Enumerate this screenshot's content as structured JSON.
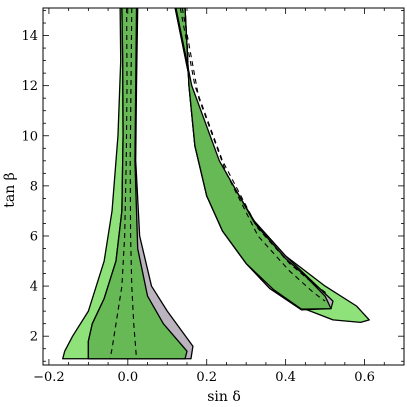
{
  "chart_data": {
    "type": "area",
    "title": "",
    "xlabel": "sin δ",
    "ylabel": "tan β",
    "xlim": [
      -0.215,
      0.7
    ],
    "ylim": [
      0.85,
      15.1
    ],
    "x_ticks": [
      -0.2,
      0.0,
      0.2,
      0.4,
      0.6
    ],
    "x_tick_labels": [
      "−0.2",
      "0.0",
      "0.2",
      "0.4",
      "0.6"
    ],
    "y_ticks": [
      2,
      4,
      6,
      8,
      10,
      12,
      14
    ],
    "y_tick_labels": [
      "2",
      "4",
      "6",
      "8",
      "10",
      "12",
      "14"
    ],
    "grid": false,
    "legend": "none",
    "colors": {
      "light_green": "#8fe27a",
      "gray": "#bbb4bf",
      "dark_green": "#66b954",
      "outline": "#000000"
    },
    "regions": [
      {
        "fill": "light_green",
        "points": [
          [
            -0.0195,
            15.1
          ],
          [
            -0.018,
            13
          ],
          [
            -0.025,
            10
          ],
          [
            -0.04,
            7
          ],
          [
            -0.06,
            5
          ],
          [
            -0.1,
            3
          ],
          [
            -0.14,
            2
          ],
          [
            -0.16,
            1.4
          ],
          [
            -0.165,
            1.1
          ],
          [
            0.145,
            1.1
          ],
          [
            0.15,
            1.3
          ],
          [
            0.08,
            2
          ],
          [
            0.04,
            3
          ],
          [
            0.02,
            5
          ],
          [
            0.015,
            8
          ],
          [
            0.017,
            12
          ],
          [
            0.022,
            15.1
          ]
        ]
      },
      {
        "fill": "gray",
        "points": [
          [
            -0.015,
            15.1
          ],
          [
            -0.013,
            13
          ],
          [
            -0.012,
            10
          ],
          [
            -0.015,
            7
          ],
          [
            -0.03,
            5
          ],
          [
            -0.06,
            3.5
          ],
          [
            -0.09,
            2.5
          ],
          [
            -0.1,
            1.8
          ],
          [
            -0.1,
            1.1
          ],
          [
            0.16,
            1.1
          ],
          [
            0.165,
            1.6
          ],
          [
            0.1,
            3
          ],
          [
            0.06,
            4
          ],
          [
            0.03,
            6
          ],
          [
            0.02,
            9
          ],
          [
            0.022,
            12
          ],
          [
            0.025,
            15.1
          ]
        ]
      },
      {
        "fill": "dark_green",
        "points": [
          [
            -0.015,
            15.1
          ],
          [
            -0.013,
            13
          ],
          [
            -0.012,
            10
          ],
          [
            -0.015,
            7
          ],
          [
            -0.03,
            5
          ],
          [
            -0.06,
            3.5
          ],
          [
            -0.09,
            2.5
          ],
          [
            -0.1,
            1.8
          ],
          [
            -0.1,
            1.1
          ],
          [
            0.145,
            1.1
          ],
          [
            0.15,
            1.4
          ],
          [
            0.09,
            2.5
          ],
          [
            0.05,
            3.6
          ],
          [
            0.025,
            5.5
          ],
          [
            0.018,
            9
          ],
          [
            0.02,
            12
          ],
          [
            0.022,
            15.1
          ]
        ]
      },
      {
        "fill": "light_green",
        "points": [
          [
            0.12,
            15.1
          ],
          [
            0.16,
            12
          ],
          [
            0.23,
            9
          ],
          [
            0.32,
            6.6
          ],
          [
            0.4,
            5.2
          ],
          [
            0.5,
            4
          ],
          [
            0.58,
            3.2
          ],
          [
            0.612,
            2.65
          ],
          [
            0.59,
            2.55
          ],
          [
            0.52,
            2.65
          ],
          [
            0.43,
            3.2
          ],
          [
            0.36,
            3.9
          ],
          [
            0.3,
            4.9
          ],
          [
            0.24,
            6.2
          ],
          [
            0.2,
            7.6
          ],
          [
            0.17,
            9.6
          ],
          [
            0.155,
            12
          ],
          [
            0.145,
            15.1
          ]
        ]
      },
      {
        "fill": "gray",
        "points": [
          [
            0.12,
            15.1
          ],
          [
            0.16,
            12
          ],
          [
            0.23,
            9
          ],
          [
            0.32,
            6.6
          ],
          [
            0.4,
            5.2
          ],
          [
            0.46,
            4.3
          ],
          [
            0.52,
            3.4
          ],
          [
            0.515,
            3.1
          ],
          [
            0.44,
            3.05
          ],
          [
            0.36,
            3.9
          ],
          [
            0.3,
            4.9
          ],
          [
            0.24,
            6.2
          ],
          [
            0.2,
            7.6
          ],
          [
            0.17,
            9.6
          ],
          [
            0.155,
            12
          ],
          [
            0.145,
            15.1
          ]
        ]
      },
      {
        "fill": "dark_green",
        "points": [
          [
            0.122,
            15.1
          ],
          [
            0.162,
            12
          ],
          [
            0.232,
            9
          ],
          [
            0.322,
            6.5
          ],
          [
            0.4,
            5.1
          ],
          [
            0.45,
            4.4
          ],
          [
            0.5,
            3.6
          ],
          [
            0.515,
            3.1
          ],
          [
            0.44,
            3.08
          ],
          [
            0.37,
            3.85
          ],
          [
            0.3,
            4.9
          ],
          [
            0.24,
            6.2
          ],
          [
            0.2,
            7.6
          ],
          [
            0.17,
            9.6
          ],
          [
            0.155,
            12
          ],
          [
            0.145,
            15.1
          ]
        ]
      }
    ],
    "dashed_curves": [
      [
        [
          -0.003,
          15.1
        ],
        [
          -0.002,
          12
        ],
        [
          -0.004,
          9
        ],
        [
          -0.008,
          6
        ],
        [
          -0.015,
          4
        ],
        [
          -0.03,
          2.5
        ],
        [
          -0.04,
          1.5
        ],
        [
          -0.045,
          1.1
        ]
      ],
      [
        [
          0.01,
          15.1
        ],
        [
          0.008,
          12
        ],
        [
          0.006,
          9
        ],
        [
          0.007,
          6
        ],
        [
          0.01,
          4
        ],
        [
          0.015,
          2.5
        ],
        [
          0.02,
          1.5
        ],
        [
          0.022,
          1.1
        ]
      ],
      [
        [
          0.133,
          15.1
        ],
        [
          0.17,
          12
        ],
        [
          0.24,
          9
        ],
        [
          0.33,
          6.3
        ],
        [
          0.41,
          4.9
        ],
        [
          0.47,
          4.1
        ],
        [
          0.505,
          3.7
        ]
      ],
      [
        [
          0.138,
          15.1
        ],
        [
          0.18,
          11.5
        ],
        [
          0.25,
          8.5
        ],
        [
          0.33,
          6
        ],
        [
          0.41,
          4.6
        ],
        [
          0.47,
          3.75
        ],
        [
          0.5,
          3.4
        ]
      ]
    ]
  }
}
